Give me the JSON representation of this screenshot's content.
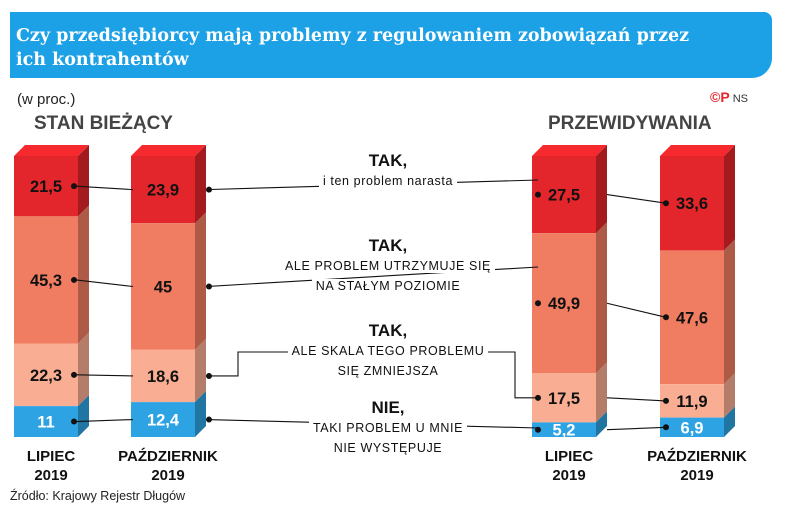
{
  "title": "Czy przedsiębiorcy mają problemy z regulowaniem zobowiązań przez ich kontrahentów",
  "unit": "(w proc.)",
  "logo": {
    "symbol": "©P",
    "initials": "NS"
  },
  "sections": {
    "left": "STAN BIEŻĄCY",
    "right": "PRZEWIDYWANIA"
  },
  "source": "Źródło: Krajowy Rejestr Długów",
  "categories": [
    {
      "title": "TAK,",
      "sub": [
        "i ten problem narasta"
      ],
      "color": "#e3262b"
    },
    {
      "title": "TAK,",
      "sub": [
        "ALE PROBLEM UTRZYMUJE SIĘ",
        "NA STAŁYM POZIOMIE"
      ],
      "color": "#f07d62"
    },
    {
      "title": "TAK,",
      "sub": [
        "ALE SKALA TEGO PROBLEMU",
        "SIĘ ZMNIEJSZA"
      ],
      "color": "#f9ae93"
    },
    {
      "title": "NIE,",
      "sub": [
        "TAKI PROBLEM U MNIE",
        "NIE WYSTĘPUJE"
      ],
      "color": "#2ea3e3"
    }
  ],
  "chart_data": {
    "type": "bar",
    "stacked": true,
    "unit": "%",
    "groups": [
      {
        "name": "STAN BIEŻĄCY",
        "bars": [
          {
            "label": [
              "LIPIEC",
              "2019"
            ],
            "values": [
              "21,5",
              "45,3",
              "22,3",
              "11"
            ]
          },
          {
            "label": [
              "PAŹDZIERNIK",
              "2019"
            ],
            "values": [
              "23,9",
              "45",
              "18,6",
              "12,4"
            ]
          }
        ]
      },
      {
        "name": "PRZEWIDYWANIA",
        "bars": [
          {
            "label": [
              "LIPIEC",
              "2019"
            ],
            "values": [
              "27,5",
              "49,9",
              "17,5",
              "5,2"
            ]
          },
          {
            "label": [
              "PAŹDZIERNIK",
              "2019"
            ],
            "values": [
              "33,6",
              "47,6",
              "11,9",
              "6,9"
            ]
          }
        ]
      }
    ]
  }
}
